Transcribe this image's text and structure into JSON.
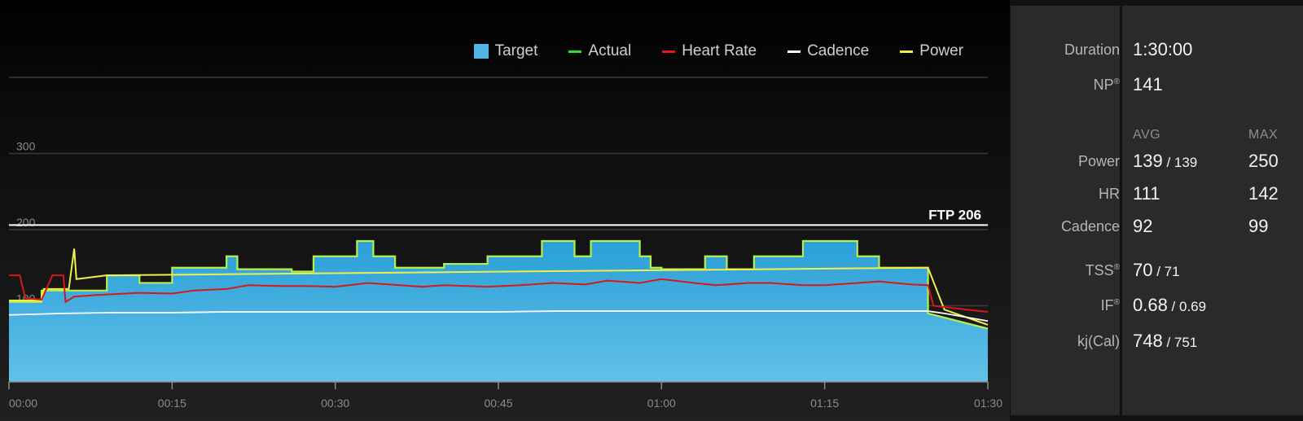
{
  "chart_data": {
    "type": "area",
    "x_ticks": [
      "00:00",
      "00:15",
      "00:30",
      "00:45",
      "01:00",
      "01:15",
      "01:30"
    ],
    "xlim_minutes": [
      0,
      90
    ],
    "ylim": [
      0,
      400
    ],
    "y_ticks": [
      {
        "value": 100,
        "label": "100"
      },
      {
        "value": 200,
        "label": "200"
      },
      {
        "value": 300,
        "label": "300"
      }
    ],
    "grid": true,
    "ftp": {
      "label": "FTP 206",
      "value": 206
    },
    "legend_position": "top-right",
    "legend": [
      {
        "key": "target",
        "label": "Target",
        "color": "#4fb6e3",
        "style": "box"
      },
      {
        "key": "actual",
        "label": "Actual",
        "color": "#2ee02e",
        "style": "line"
      },
      {
        "key": "heart_rate",
        "label": "Heart Rate",
        "color": "#e01818",
        "style": "line"
      },
      {
        "key": "cadence",
        "label": "Cadence",
        "color": "#ffffff",
        "style": "line"
      },
      {
        "key": "power",
        "label": "Power",
        "color": "#f2ee4a",
        "style": "line"
      }
    ],
    "series": [
      {
        "key": "target",
        "x_minutes": [
          0,
          3,
          3,
          9,
          9,
          12,
          12,
          15,
          15,
          20,
          20,
          21,
          21,
          26,
          26,
          28,
          28,
          32,
          32,
          33.5,
          33.5,
          35.5,
          35.5,
          40,
          40,
          44,
          44,
          49,
          49,
          52,
          52,
          53.5,
          53.5,
          58,
          58,
          59,
          59,
          60,
          60,
          64,
          64,
          66,
          66,
          68.5,
          68.5,
          71,
          71,
          73,
          73,
          78,
          78,
          80,
          80,
          81.5,
          81.5,
          84.5,
          84.5,
          90
        ],
        "values": [
          105,
          105,
          120,
          120,
          140,
          140,
          130,
          130,
          150,
          150,
          165,
          165,
          148,
          148,
          145,
          145,
          165,
          165,
          185,
          185,
          165,
          165,
          150,
          150,
          155,
          155,
          165,
          165,
          185,
          185,
          165,
          165,
          185,
          185,
          165,
          165,
          150,
          150,
          148,
          148,
          165,
          165,
          148,
          148,
          165,
          165,
          165,
          165,
          185,
          185,
          165,
          165,
          150,
          150,
          150,
          150,
          90,
          70
        ]
      },
      {
        "key": "heart_rate",
        "x_minutes": [
          0,
          1,
          1.5,
          3,
          4,
          4.3,
          5,
          5.2,
          6,
          8,
          12,
          15,
          17,
          20,
          22,
          25,
          27,
          30,
          33,
          35,
          38,
          40,
          44,
          47,
          50,
          53,
          55,
          58,
          60,
          63,
          65,
          68,
          70,
          73,
          75,
          78,
          80,
          83,
          84.5,
          85,
          88,
          90
        ],
        "values": [
          140,
          140,
          110,
          108,
          140,
          140,
          140,
          105,
          112,
          114,
          117,
          116,
          120,
          122,
          127,
          126,
          126,
          125,
          130,
          128,
          125,
          127,
          125,
          127,
          130,
          128,
          133,
          130,
          135,
          130,
          127,
          130,
          130,
          127,
          127,
          130,
          132,
          128,
          127,
          100,
          95,
          92
        ]
      },
      {
        "key": "cadence",
        "x_minutes": [
          0,
          5,
          10,
          15,
          20,
          25,
          30,
          35,
          40,
          45,
          50,
          55,
          60,
          65,
          70,
          75,
          80,
          84.5,
          86,
          88,
          90
        ],
        "values": [
          88,
          90,
          91,
          91,
          92,
          92,
          92,
          92,
          92,
          92,
          93,
          93,
          93,
          93,
          93,
          93,
          93,
          93,
          90,
          85,
          80
        ]
      },
      {
        "key": "power",
        "x_minutes": [
          0,
          3,
          3.2,
          5.5,
          6,
          6.2,
          9,
          84.5,
          86,
          88,
          90
        ],
        "values": [
          107,
          107,
          122,
          122,
          175,
          135,
          140,
          150,
          95,
          85,
          75
        ]
      }
    ]
  },
  "stats": {
    "duration": {
      "label": "Duration",
      "value": "1:30:00"
    },
    "np": {
      "label": "NP",
      "mark": "®",
      "value": "141"
    },
    "headers": {
      "avg": "AVG",
      "max": "MAX"
    },
    "power": {
      "label": "Power",
      "avg": "139",
      "sep": " / ",
      "avg2": "139",
      "max": "250"
    },
    "hr": {
      "label": "HR",
      "avg": "111",
      "max": "142"
    },
    "cadence": {
      "label": "Cadence",
      "avg": "92",
      "max": "99"
    },
    "tss": {
      "label": "TSS",
      "mark": "®",
      "value": "70",
      "sep": " / ",
      "value2": "71"
    },
    "if": {
      "label": "IF",
      "mark": "®",
      "value": "0.68",
      "sep": " / ",
      "value2": "0.69"
    },
    "kj": {
      "label": "kj(Cal)",
      "value": "748",
      "sep": " / ",
      "value2": "751"
    }
  }
}
